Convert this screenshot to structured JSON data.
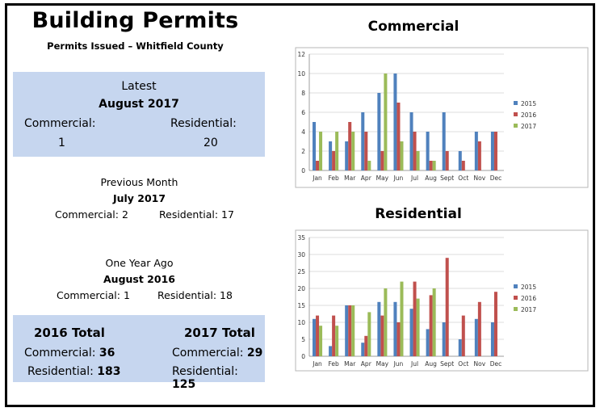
{
  "header": {
    "title": "Building Permits",
    "subtitle": "Permits Issued – Whitfield County"
  },
  "latest": {
    "heading": "Latest",
    "period": "August 2017",
    "commercial_label": "Commercial:",
    "residential_label": "Residential:",
    "commercial_value": "1",
    "residential_value": "20"
  },
  "previous_month": {
    "heading": "Previous Month",
    "period": "July 2017",
    "commercial_text": "Commercial: 2",
    "residential_text": "Residential: 17"
  },
  "year_ago": {
    "heading": "One Year Ago",
    "period": "August 2016",
    "commercial_text": "Commercial: 1",
    "residential_text": "Residential: 18"
  },
  "totals": {
    "t2016": {
      "heading": "2016 Total",
      "commercial_label": "Commercial: ",
      "commercial_value": "36",
      "residential_label": "Residential: ",
      "residential_value": "183"
    },
    "t2017": {
      "heading": "2017 Total",
      "commercial_label": "Commercial: ",
      "commercial_value": "29",
      "residential_label": "Residential: ",
      "residential_value": "125"
    }
  },
  "colors": {
    "panel": "#c6d6ef",
    "series": [
      "#4f81bd",
      "#c0504d",
      "#9bbb59"
    ]
  },
  "chart_data": [
    {
      "type": "bar",
      "title": "Commercial",
      "categories": [
        "Jan",
        "Feb",
        "Mar",
        "Apr",
        "May",
        "Jun",
        "Jul",
        "Aug",
        "Sept",
        "Oct",
        "Nov",
        "Dec"
      ],
      "ylim": [
        0,
        12
      ],
      "yticks": [
        0,
        2,
        4,
        6,
        8,
        10,
        12
      ],
      "grid": true,
      "legend": "right",
      "series": [
        {
          "name": "2015",
          "values": [
            5,
            3,
            3,
            6,
            8,
            10,
            6,
            4,
            6,
            2,
            4,
            4
          ]
        },
        {
          "name": "2016",
          "values": [
            1,
            2,
            5,
            4,
            2,
            7,
            4,
            1,
            2,
            1,
            3,
            4
          ]
        },
        {
          "name": "2017",
          "values": [
            4,
            4,
            4,
            1,
            10,
            3,
            2,
            1,
            null,
            null,
            null,
            null
          ]
        }
      ]
    },
    {
      "type": "bar",
      "title": "Residential",
      "categories": [
        "Jan",
        "Feb",
        "Mar",
        "Apr",
        "May",
        "Jun",
        "Jul",
        "Aug",
        "Sept",
        "Oct",
        "Nov",
        "Dec"
      ],
      "ylim": [
        0,
        35
      ],
      "yticks": [
        0,
        5,
        10,
        15,
        20,
        25,
        30,
        35
      ],
      "grid": true,
      "legend": "right",
      "series": [
        {
          "name": "2015",
          "values": [
            11,
            3,
            15,
            4,
            16,
            16,
            14,
            8,
            10,
            5,
            11,
            10
          ]
        },
        {
          "name": "2016",
          "values": [
            12,
            12,
            15,
            6,
            12,
            10,
            22,
            18,
            29,
            12,
            16,
            19
          ]
        },
        {
          "name": "2017",
          "values": [
            9,
            9,
            15,
            13,
            20,
            22,
            17,
            20,
            null,
            null,
            null,
            null
          ]
        }
      ]
    }
  ]
}
